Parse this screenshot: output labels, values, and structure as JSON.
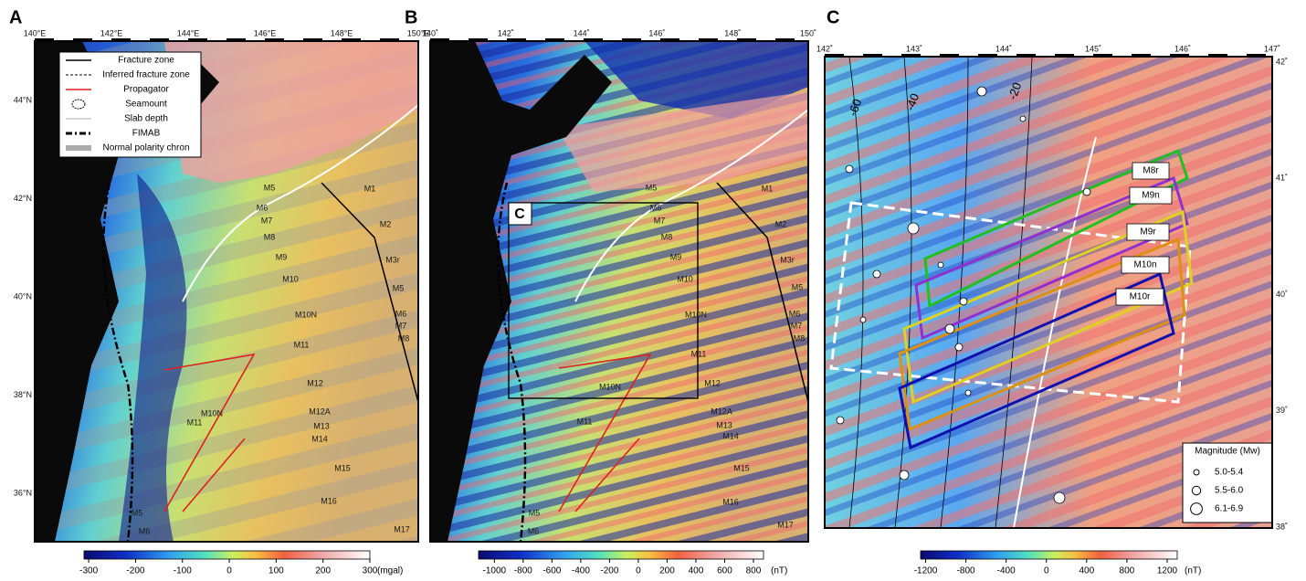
{
  "panels": [
    {
      "label": "A",
      "x_labels": [
        "140°E",
        "142°E",
        "144°E",
        "146°E",
        "148°E",
        "150°E"
      ],
      "y_labels": [
        "44°N",
        "42°N",
        "40°N",
        "38°N",
        "36°N"
      ],
      "legend": [
        "Fracture zone",
        "Inferred fracture zone",
        "Propagator",
        "Seamount",
        "Slab depth",
        "FIMAB",
        "Normal polarity chron"
      ],
      "annotations": [
        "M1",
        "M2",
        "M3r",
        "M5",
        "M6",
        "M7",
        "M8",
        "M9",
        "M10",
        "M10N",
        "M11",
        "M12",
        "M10N",
        "M11",
        "M12A",
        "M13",
        "M14",
        "M15",
        "M16",
        "M17",
        "M5",
        "M6",
        "M7",
        "M8",
        "M5",
        "M6"
      ],
      "colorbar": {
        "range": [
          -310,
          300
        ],
        "ticks": [
          -300,
          -200,
          -100,
          0,
          100,
          200,
          300
        ],
        "unit": "(mgal)"
      }
    },
    {
      "label": "B",
      "x_labels": [
        "140˚",
        "142˚",
        "144˚",
        "146˚",
        "148˚",
        "150˚"
      ],
      "annotations": [
        "M1",
        "M2",
        "M3r",
        "M5",
        "M6",
        "M7",
        "M8",
        "M9",
        "M10",
        "M10N",
        "M11",
        "M12",
        "M10N",
        "M11",
        "M12A",
        "M13",
        "M14",
        "M15",
        "M16",
        "M17",
        "M5",
        "M6",
        "M7",
        "M8",
        "M5",
        "M6"
      ],
      "inset_label": "C",
      "colorbar": {
        "range": [
          -1110,
          870
        ],
        "ticks": [
          -1000,
          -800,
          -600,
          -400,
          -200,
          0,
          200,
          400,
          600,
          800
        ],
        "unit": "(nT)"
      }
    },
    {
      "label": "C",
      "x_labels": [
        "142˚",
        "143˚",
        "144˚",
        "145˚",
        "146˚",
        "147˚"
      ],
      "y_labels": [
        "42˚",
        "41˚",
        "40˚",
        "39˚",
        "38˚"
      ],
      "annotations": [
        "M8r",
        "M9n",
        "M9r",
        "M10n",
        "M10r"
      ],
      "slab_depths": [
        -60,
        -40,
        -20
      ],
      "legend_title": "Magnitude (Mw)",
      "legend": [
        "5.0-5.4",
        "5.5-6.0",
        "6.1-6.9"
      ],
      "colorbar": {
        "range": [
          -1250,
          1300
        ],
        "ticks": [
          -1200,
          -800,
          -400,
          0,
          400,
          800,
          1200
        ],
        "unit": "(nT)"
      }
    }
  ]
}
